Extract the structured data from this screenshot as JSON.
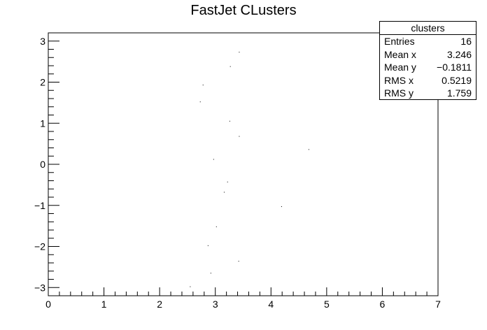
{
  "chart_data": {
    "type": "scatter",
    "title": "FastJet CLusters",
    "xlabel": "",
    "ylabel": "",
    "xlim": [
      0,
      7
    ],
    "ylim": [
      -3.2,
      3.2
    ],
    "x_ticks": [
      0,
      1,
      2,
      3,
      4,
      5,
      6,
      7
    ],
    "y_ticks": [
      -3,
      -2,
      -1,
      0,
      1,
      2,
      3
    ],
    "x_tick_labels": [
      "0",
      "1",
      "2",
      "3",
      "4",
      "5",
      "6",
      "7"
    ],
    "y_tick_labels": [
      "−3",
      "−2",
      "−1",
      "0",
      "1",
      "2",
      "3"
    ],
    "grid": false,
    "marker_color": "#000000",
    "points": [
      {
        "x": 3.43,
        "y": 2.73
      },
      {
        "x": 3.27,
        "y": 2.38
      },
      {
        "x": 2.78,
        "y": 1.93
      },
      {
        "x": 2.73,
        "y": 1.52
      },
      {
        "x": 3.26,
        "y": 1.05
      },
      {
        "x": 3.43,
        "y": 0.68
      },
      {
        "x": 4.68,
        "y": 0.36
      },
      {
        "x": 2.97,
        "y": 0.12
      },
      {
        "x": 3.22,
        "y": -0.43
      },
      {
        "x": 3.16,
        "y": -0.68
      },
      {
        "x": 4.19,
        "y": -1.03
      },
      {
        "x": 3.02,
        "y": -1.52
      },
      {
        "x": 2.87,
        "y": -1.98
      },
      {
        "x": 3.42,
        "y": -2.36
      },
      {
        "x": 2.92,
        "y": -2.65
      },
      {
        "x": 2.55,
        "y": -2.98
      }
    ],
    "stats_box": {
      "name": "clusters",
      "entries_label": "Entries",
      "entries": "16",
      "mean_x_label": "Mean x",
      "mean_x": "3.246",
      "mean_y_label": "Mean y",
      "mean_y": "−0.1811",
      "rms_x_label": "RMS x",
      "rms_x": "0.5219",
      "rms_y_label": "RMS y",
      "rms_y": "1.759"
    }
  }
}
